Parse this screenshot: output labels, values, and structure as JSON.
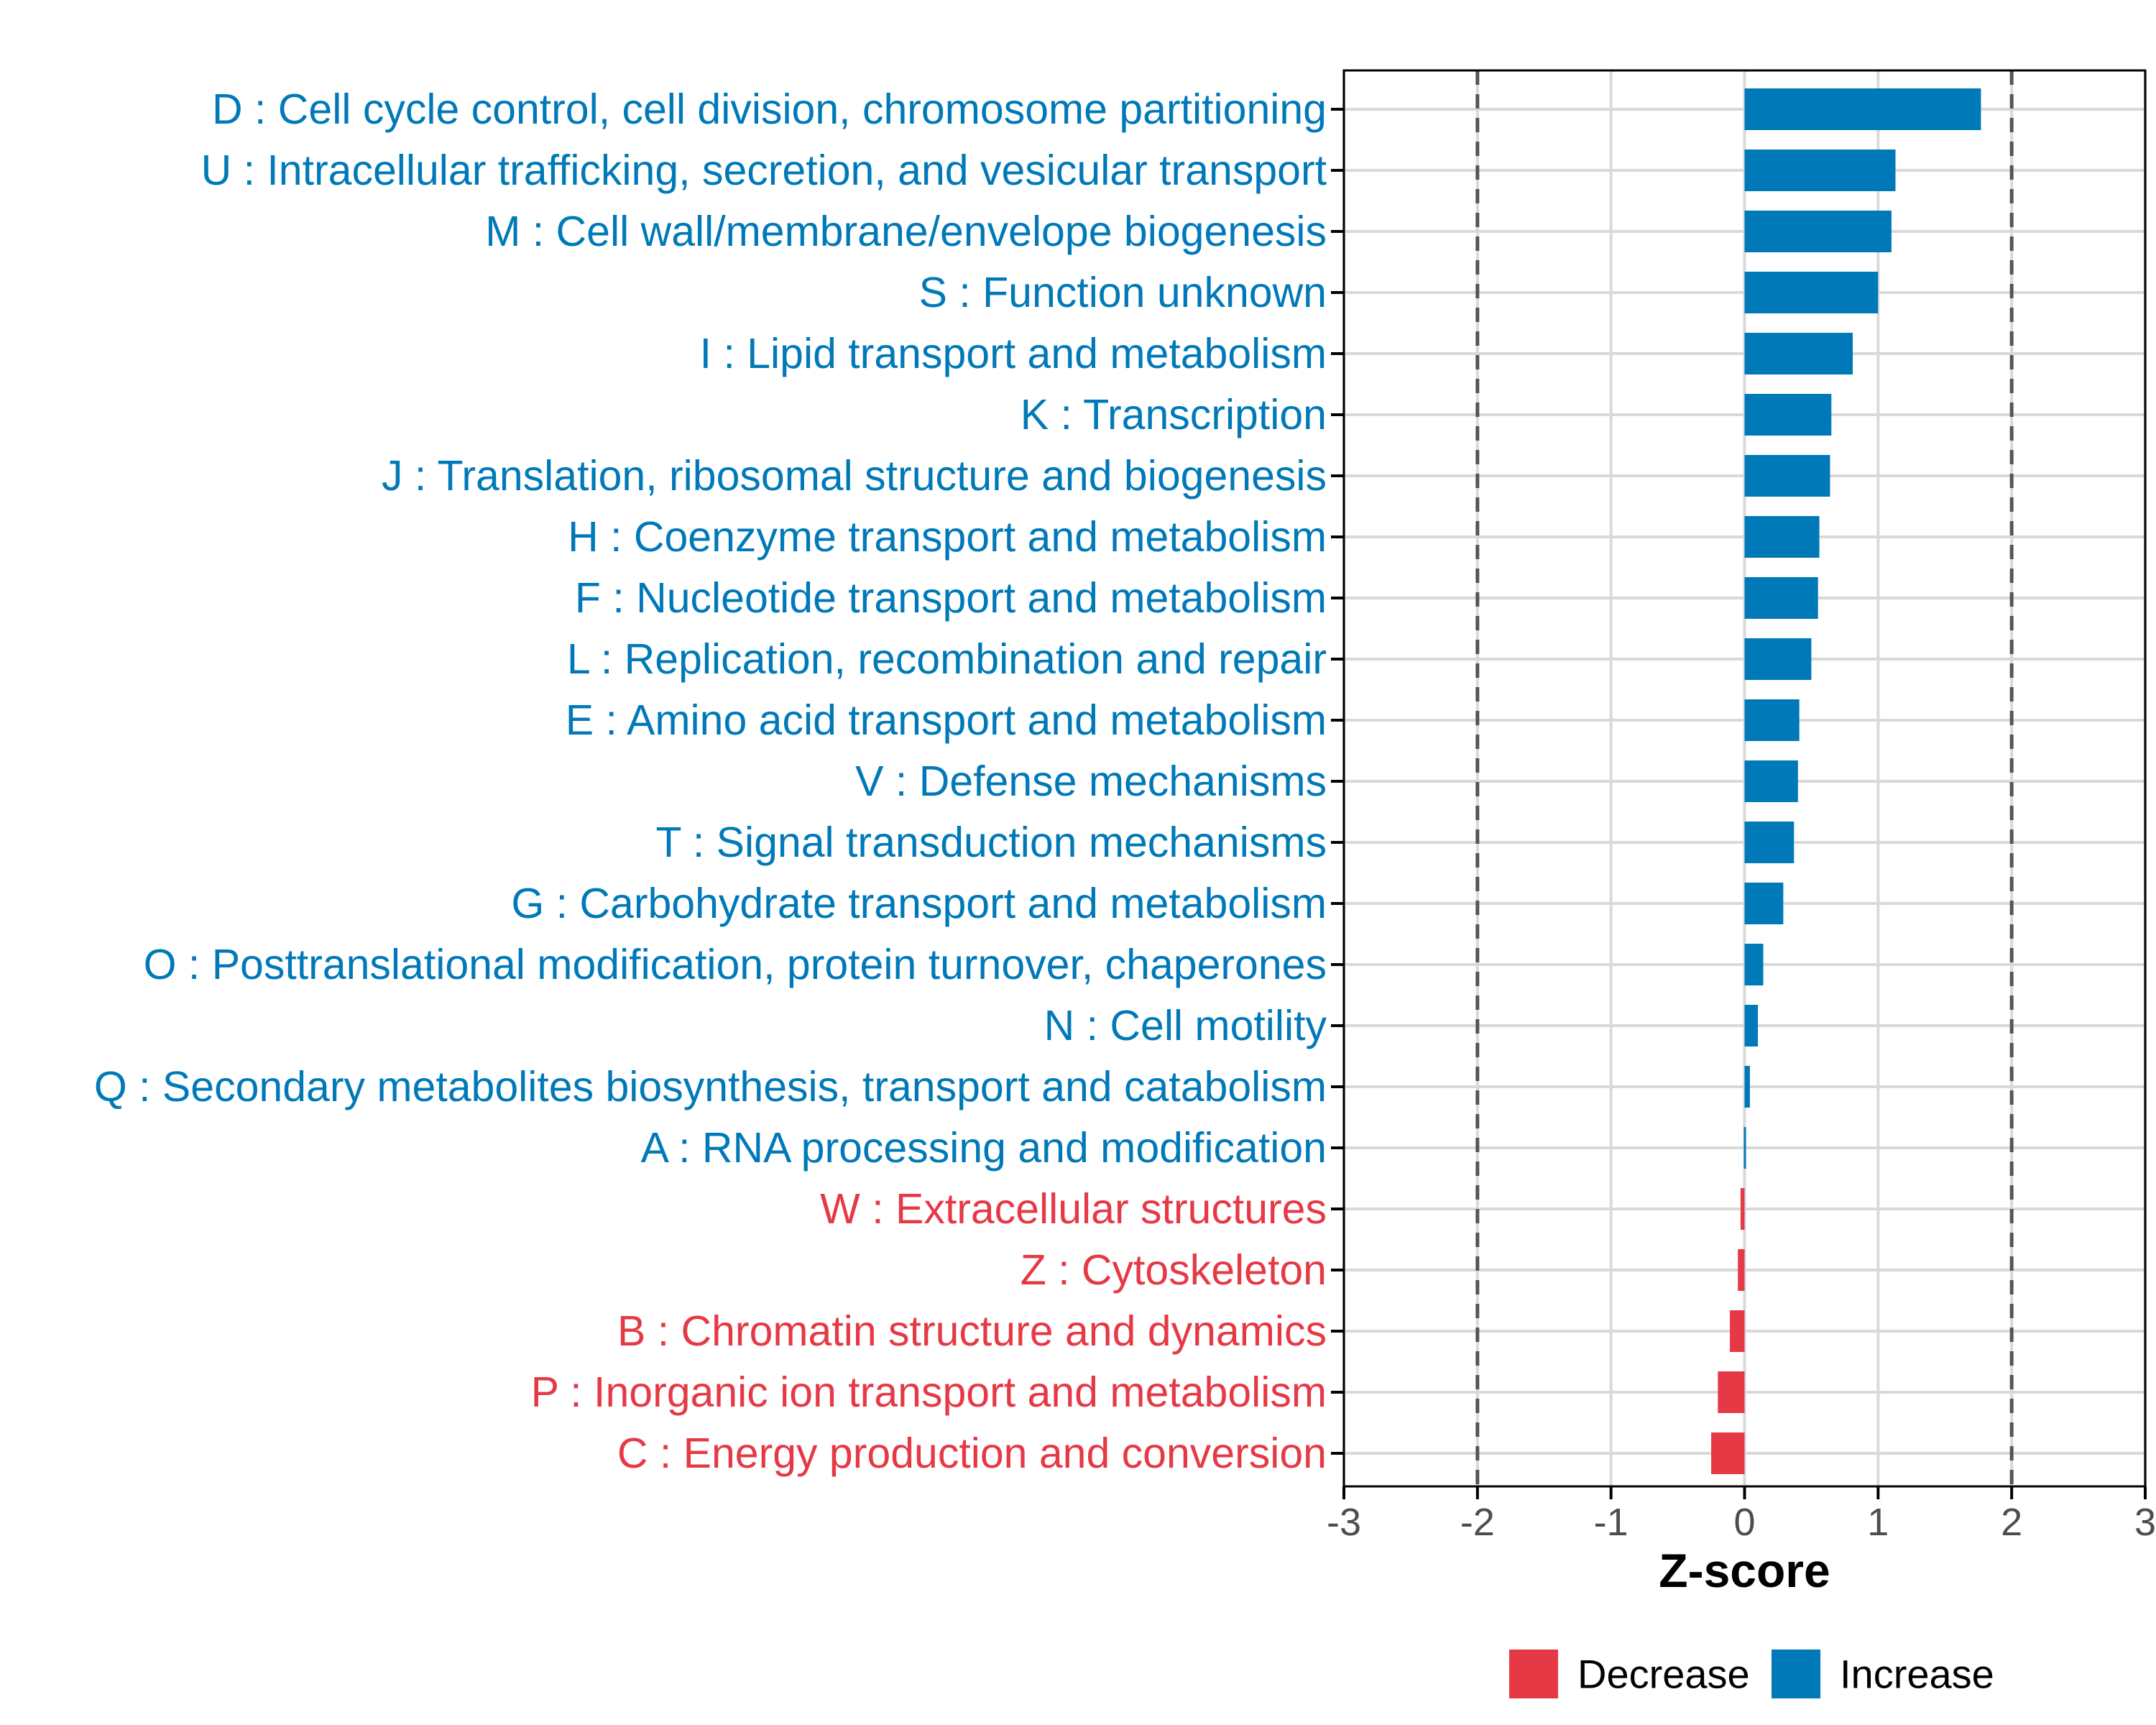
{
  "colors": {
    "increase": "#0079b8",
    "decrease": "#e63946",
    "grid": "#d9d9d9",
    "axis": "#000000",
    "tick_text": "#4d4d4d",
    "reference_line": "#555555"
  },
  "chart_data": {
    "type": "bar",
    "orientation": "horizontal",
    "xlabel": "Z-score",
    "xlim": [
      -3,
      3
    ],
    "x_ticks": [
      -3,
      -2,
      -1,
      0,
      1,
      2,
      3
    ],
    "x_tick_labels": [
      "-3",
      "-2",
      "-1",
      "0",
      "1",
      "2",
      "3"
    ],
    "reference_lines": [
      -2,
      2
    ],
    "grid": true,
    "legend_position": "bottom",
    "legend": [
      {
        "key": "decrease",
        "label": "Decrease"
      },
      {
        "key": "increase",
        "label": "Increase"
      }
    ],
    "categories": [
      "D : Cell cycle control, cell division, chromosome partitioning",
      "U : Intracellular trafficking, secretion, and vesicular transport",
      "M : Cell wall/membrane/envelope biogenesis",
      "S : Function unknown",
      "I : Lipid transport and metabolism",
      "K : Transcription",
      "J : Translation, ribosomal structure and biogenesis",
      "H : Coenzyme transport and metabolism",
      "F : Nucleotide transport and metabolism",
      "L : Replication, recombination and repair",
      "E : Amino acid transport and metabolism",
      "V : Defense mechanisms",
      "T : Signal transduction mechanisms",
      "G : Carbohydrate transport and metabolism",
      "O : Posttranslational modification, protein turnover, chaperones",
      "N : Cell motility",
      "Q : Secondary metabolites biosynthesis, transport and catabolism",
      "A : RNA processing and modification",
      "W : Extracellular structures",
      "Z : Cytoskeleton",
      "B : Chromatin structure and dynamics",
      "P : Inorganic ion transport and metabolism",
      "C : Energy production and conversion"
    ],
    "values": [
      1.77,
      1.13,
      1.1,
      1.0,
      0.81,
      0.65,
      0.64,
      0.56,
      0.55,
      0.5,
      0.41,
      0.4,
      0.37,
      0.29,
      0.14,
      0.1,
      0.04,
      0.01,
      -0.03,
      -0.05,
      -0.11,
      -0.2,
      -0.25
    ],
    "groups": [
      "increase",
      "increase",
      "increase",
      "increase",
      "increase",
      "increase",
      "increase",
      "increase",
      "increase",
      "increase",
      "increase",
      "increase",
      "increase",
      "increase",
      "increase",
      "increase",
      "increase",
      "increase",
      "decrease",
      "decrease",
      "decrease",
      "decrease",
      "decrease"
    ]
  }
}
